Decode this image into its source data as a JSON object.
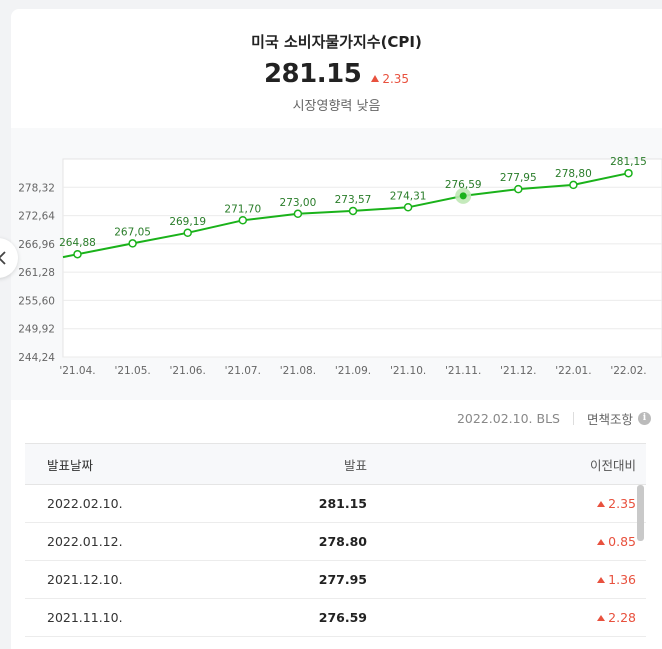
{
  "header": {
    "title": "미국 소비자물가지수(CPI)",
    "price": "281.15",
    "change": "2.35",
    "change_direction": "up",
    "influence": "시장영향력 낮음"
  },
  "colors": {
    "line": "#1ab21a",
    "up": "#e8513e",
    "highlight": "#bfe8b5"
  },
  "chart_data": {
    "type": "line",
    "categories": [
      "'21.04.",
      "'21.05.",
      "'21.06.",
      "'21.07.",
      "'21.08.",
      "'21.09.",
      "'21.10.",
      "'21.11.",
      "'21.12.",
      "'22.01.",
      "'22.02."
    ],
    "values": [
      264.88,
      267.05,
      269.19,
      271.7,
      273.0,
      273.57,
      274.31,
      276.59,
      277.95,
      278.8,
      281.15
    ],
    "data_labels": [
      "264,88",
      "267,05",
      "269,19",
      "271,70",
      "273,00",
      "273,57",
      "274,31",
      "276,59",
      "277,95",
      "278,80",
      "281,15"
    ],
    "y_ticks": [
      244.24,
      249.92,
      255.6,
      261.28,
      266.96,
      272.64,
      278.32
    ],
    "y_tick_labels": [
      "244,24",
      "249,92",
      "255,60",
      "261,28",
      "266,96",
      "272,64",
      "278,32"
    ],
    "ylim": [
      244.24,
      284.0
    ],
    "highlight_index": 7,
    "grid": true
  },
  "nav": {
    "prev_icon": "chevron-left-icon"
  },
  "source": {
    "text": "2022.02.10. BLS",
    "disclaimer": "면책조항",
    "info_icon": "i"
  },
  "table": {
    "headers": {
      "date": "발표날짜",
      "value": "발표",
      "change": "이전대비"
    },
    "rows": [
      {
        "date": "2022.02.10.",
        "value": "281.15",
        "change": "2.35"
      },
      {
        "date": "2022.01.12.",
        "value": "278.80",
        "change": "0.85"
      },
      {
        "date": "2021.12.10.",
        "value": "277.95",
        "change": "1.36"
      },
      {
        "date": "2021.11.10.",
        "value": "276.59",
        "change": "2.28"
      }
    ]
  }
}
